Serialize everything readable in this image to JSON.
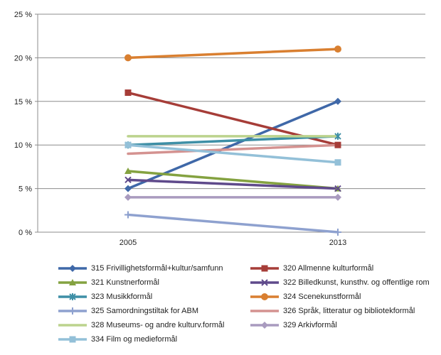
{
  "chart_data": {
    "type": "line",
    "x": [
      "2005",
      "2013"
    ],
    "ylim": [
      0,
      25
    ],
    "yticks": [
      "0 %",
      "5 %",
      "10 %",
      "15 %",
      "20 %",
      "25 %"
    ],
    "ytick_values": [
      0,
      5,
      10,
      15,
      20,
      25
    ],
    "grid": true,
    "legend_position": "bottom",
    "series": [
      {
        "name": "315 Frivillighetsformål+kultur/samfunn",
        "values": [
          5,
          15
        ],
        "color": "#3f68a8",
        "marker": "diamond"
      },
      {
        "name": "320 Allmenne kulturformål",
        "values": [
          16,
          10
        ],
        "color": "#a63d38",
        "marker": "square"
      },
      {
        "name": "321 Kunstnerformål",
        "values": [
          7,
          5
        ],
        "color": "#84a240",
        "marker": "triangle"
      },
      {
        "name": "322 Billedkunst, kunsthv. og offentlige rom",
        "values": [
          6,
          5
        ],
        "color": "#5f4a8b",
        "marker": "x"
      },
      {
        "name": "323 Musikkformål",
        "values": [
          10,
          11
        ],
        "color": "#3e8fa6",
        "marker": "star"
      },
      {
        "name": "324 Scenekunstformål",
        "values": [
          20,
          21
        ],
        "color": "#d97f30",
        "marker": "circle"
      },
      {
        "name": "325 Samordningstiltak for ABM",
        "values": [
          2,
          0
        ],
        "color": "#8ea1cf",
        "marker": "plus"
      },
      {
        "name": "326 Språk, litteratur og bibliotekformål",
        "values": [
          9,
          10
        ],
        "color": "#d49290",
        "marker": "none"
      },
      {
        "name": "328 Museums- og andre kulturv.formål",
        "values": [
          11,
          11
        ],
        "color": "#bcd38d",
        "marker": "none"
      },
      {
        "name": "329 Arkivformål",
        "values": [
          4,
          4
        ],
        "color": "#a99bbf",
        "marker": "diamond"
      },
      {
        "name": "334 Film  og medieformål",
        "values": [
          10,
          8
        ],
        "color": "#93c0d8",
        "marker": "square"
      }
    ]
  }
}
